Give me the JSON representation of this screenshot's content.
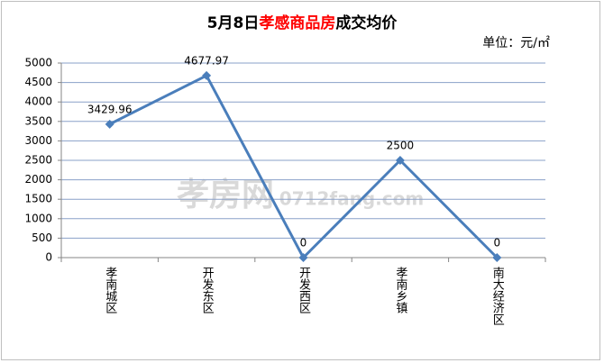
{
  "chart_data": {
    "type": "line",
    "title": [
      {
        "text": "5月8日",
        "color": "#000000"
      },
      {
        "text": "孝感商品房",
        "color": "#ff0000"
      },
      {
        "text": "成交均价",
        "color": "#000000"
      }
    ],
    "unit_label": "单位：元/㎡",
    "watermark": [
      "孝房网",
      "0712fang.com"
    ],
    "categories": [
      "孝南城区",
      "开发东区",
      "开发西区",
      "孝南乡镇",
      "南大经济区"
    ],
    "series": [
      {
        "name": "成交均价",
        "color": "#4a7ebb",
        "values": [
          3429.96,
          4677.97,
          0,
          2500,
          0
        ]
      }
    ],
    "ylim": [
      0,
      5000
    ],
    "yticks": [
      0,
      500,
      1000,
      1500,
      2000,
      2500,
      3000,
      3500,
      4000,
      4500,
      5000
    ],
    "grid": true
  }
}
